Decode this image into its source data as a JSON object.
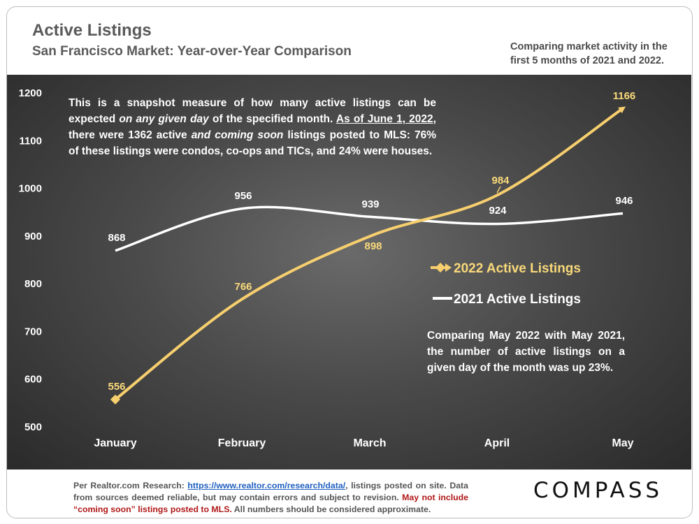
{
  "header": {
    "title": "Active Listings",
    "subtitle": "San Francisco Market: Year-over-Year Comparison",
    "side_note": "Comparing market activity in the first 5 months of 2021 and 2022."
  },
  "annotations": {
    "snapshot_1": "This is a snapshot measure of how many active listings can be expected ",
    "snapshot_2": "on any given day",
    "snapshot_3": " of the specified month. ",
    "snapshot_4": "As of June 1, 2022",
    "snapshot_5": ", there were 1362 active ",
    "snapshot_6": "and coming soon",
    "snapshot_7": " listings posted to MLS: 76% of these listings were condos, co-ops and TICs, and 24% were houses.",
    "compare": "Comparing May 2022 with May 2021, the number of active listings on a given day of the month was up 23%."
  },
  "footer": {
    "prefix": "Per Realtor.com Research: ",
    "link": "https://www.realtor.com/research/data/",
    "mid": ", listings posted on site. Data from sources deemed reliable, but may contain errors and subject to revision. ",
    "red": "May not include “coming soon” listings posted to MLS.",
    "suffix": " All numbers should be considered approximate."
  },
  "brand": {
    "logo": "COMPASS"
  },
  "colors": {
    "series_2022": "#f7cf6e",
    "series_2021": "#ffffff",
    "label_2022": "#f9d97a"
  },
  "chart_data": {
    "type": "line",
    "categories": [
      "January",
      "February",
      "March",
      "April",
      "May"
    ],
    "ylim": [
      500,
      1200
    ],
    "yticks": [
      500,
      600,
      700,
      800,
      900,
      1000,
      1100,
      1200
    ],
    "series": [
      {
        "name": "2022 Active Listings",
        "values": [
          556,
          766,
          898,
          984,
          1166
        ]
      },
      {
        "name": "2021 Active Listings",
        "values": [
          868,
          956,
          939,
          924,
          946
        ]
      }
    ],
    "legend_position": "right"
  }
}
